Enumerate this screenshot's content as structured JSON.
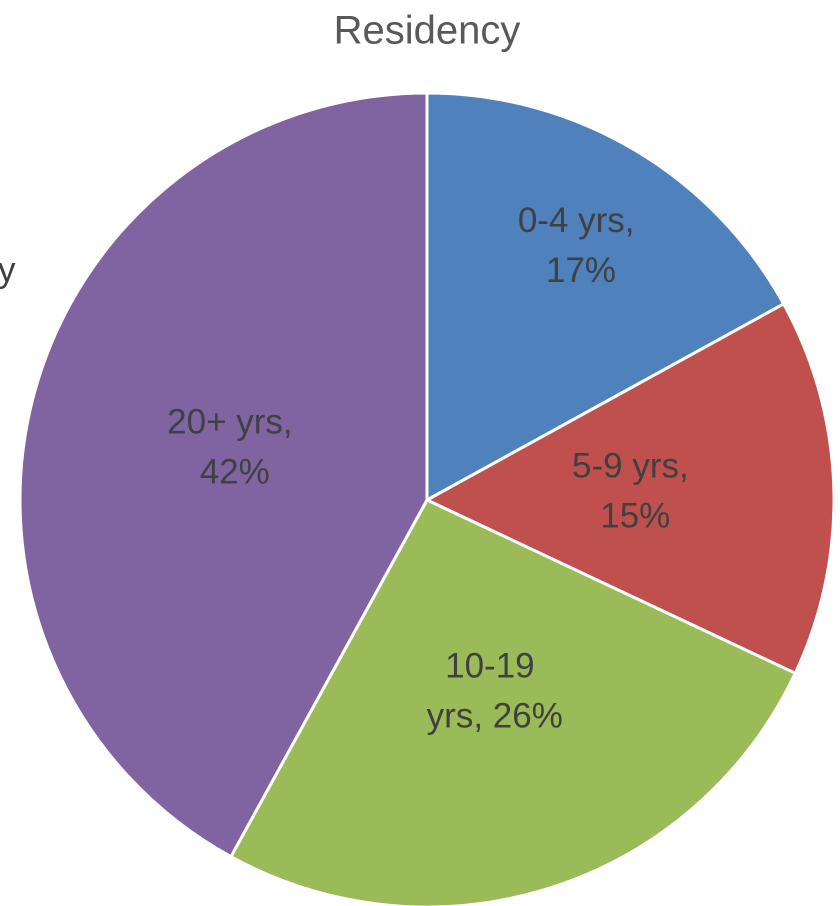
{
  "chart_data": {
    "type": "pie",
    "title": "Residency",
    "annotation": "y",
    "categories": [
      "0-4 yrs",
      "5-9 yrs",
      "10-19 yrs",
      "20+ yrs"
    ],
    "values": [
      17,
      15,
      26,
      42
    ],
    "data_labels": [
      "0-4 yrs, 17%",
      "5-9 yrs, 15%",
      "10-19 yrs, 26%",
      "20+ yrs, 42%"
    ],
    "colors": [
      "#4f81bd",
      "#c0504d",
      "#9bbb59",
      "#8064a2"
    ]
  }
}
